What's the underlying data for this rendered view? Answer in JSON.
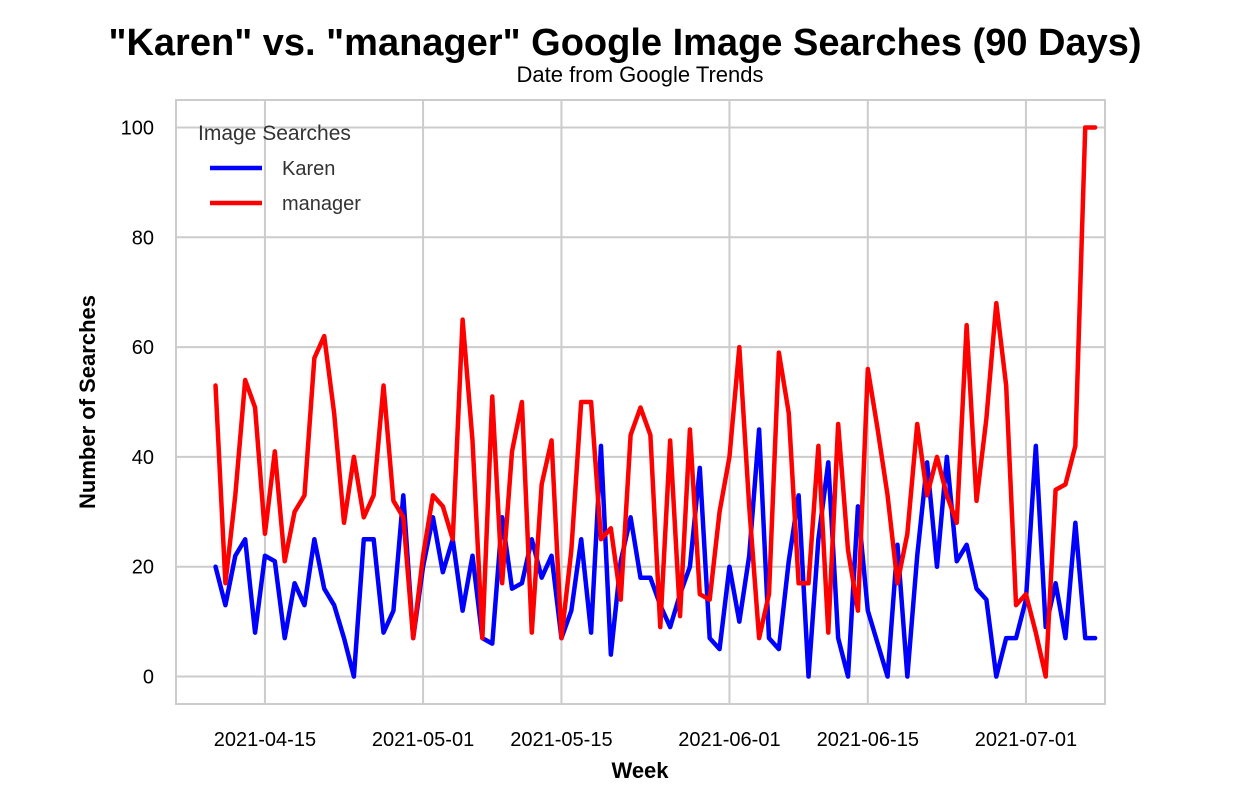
{
  "chart_data": {
    "type": "line",
    "title": "\"Karen\" vs. \"manager\" Google Image Searches (90 Days)",
    "subtitle": "Date from Google Trends",
    "xlabel": "Week",
    "ylabel": "Number of Searches",
    "ylim": [
      -5,
      105
    ],
    "yticks": [
      0,
      20,
      40,
      60,
      80,
      100
    ],
    "xlim": [
      "2021-04-06",
      "2021-07-09"
    ],
    "xticks": [
      "2021-04-15",
      "2021-05-01",
      "2021-05-15",
      "2021-06-01",
      "2021-06-15",
      "2021-07-01"
    ],
    "grid": true,
    "legend": {
      "title": "Image Searches",
      "placement": "top-left"
    },
    "x": [
      "2021-04-10",
      "2021-04-11",
      "2021-04-12",
      "2021-04-13",
      "2021-04-14",
      "2021-04-15",
      "2021-04-16",
      "2021-04-17",
      "2021-04-18",
      "2021-04-19",
      "2021-04-20",
      "2021-04-21",
      "2021-04-22",
      "2021-04-23",
      "2021-04-24",
      "2021-04-25",
      "2021-04-26",
      "2021-04-27",
      "2021-04-28",
      "2021-04-29",
      "2021-04-30",
      "2021-05-01",
      "2021-05-02",
      "2021-05-03",
      "2021-05-04",
      "2021-05-05",
      "2021-05-06",
      "2021-05-07",
      "2021-05-08",
      "2021-05-09",
      "2021-05-10",
      "2021-05-11",
      "2021-05-12",
      "2021-05-13",
      "2021-05-14",
      "2021-05-15",
      "2021-05-16",
      "2021-05-17",
      "2021-05-18",
      "2021-05-19",
      "2021-05-20",
      "2021-05-21",
      "2021-05-22",
      "2021-05-23",
      "2021-05-24",
      "2021-05-25",
      "2021-05-26",
      "2021-05-27",
      "2021-05-28",
      "2021-05-29",
      "2021-05-30",
      "2021-05-31",
      "2021-06-01",
      "2021-06-02",
      "2021-06-03",
      "2021-06-04",
      "2021-06-05",
      "2021-06-06",
      "2021-06-07",
      "2021-06-08",
      "2021-06-09",
      "2021-06-10",
      "2021-06-11",
      "2021-06-12",
      "2021-06-13",
      "2021-06-14",
      "2021-06-15",
      "2021-06-16",
      "2021-06-17",
      "2021-06-18",
      "2021-06-19",
      "2021-06-20",
      "2021-06-21",
      "2021-06-22",
      "2021-06-23",
      "2021-06-24",
      "2021-06-25",
      "2021-06-26",
      "2021-06-27",
      "2021-06-28",
      "2021-06-29",
      "2021-06-30",
      "2021-07-01",
      "2021-07-02",
      "2021-07-03",
      "2021-07-04",
      "2021-07-05",
      "2021-07-06",
      "2021-07-07",
      "2021-07-08"
    ],
    "series": [
      {
        "name": "Karen",
        "color": "#0000ff",
        "values": [
          20,
          13,
          22,
          25,
          8,
          22,
          21,
          7,
          17,
          13,
          25,
          16,
          13,
          7,
          0,
          25,
          25,
          8,
          12,
          33,
          7,
          20,
          29,
          19,
          25,
          12,
          22,
          7,
          6,
          29,
          16,
          17,
          25,
          18,
          22,
          7,
          12,
          25,
          8,
          42,
          4,
          21,
          29,
          18,
          18,
          13,
          9,
          15,
          20,
          38,
          7,
          5,
          20,
          10,
          22,
          45,
          7,
          5,
          21,
          33,
          0,
          25,
          39,
          7,
          0,
          31,
          12,
          6,
          0,
          24,
          0,
          22,
          39,
          20,
          40,
          21,
          24,
          16,
          14,
          0,
          7,
          7,
          14,
          42,
          9,
          17,
          7,
          28,
          7,
          7
        ]
      },
      {
        "name": "manager",
        "color": "#ff0000",
        "values": [
          53,
          17,
          33,
          54,
          49,
          26,
          41,
          21,
          30,
          33,
          58,
          62,
          48,
          28,
          40,
          29,
          33,
          53,
          32,
          29,
          7,
          22,
          33,
          31,
          25,
          65,
          43,
          7,
          51,
          17,
          41,
          50,
          8,
          35,
          43,
          7,
          23,
          50,
          50,
          25,
          27,
          14,
          44,
          49,
          44,
          9,
          43,
          11,
          45,
          15,
          14,
          30,
          40,
          60,
          31,
          7,
          15,
          59,
          48,
          17,
          17,
          42,
          8,
          46,
          23,
          12,
          56,
          45,
          33,
          17,
          26,
          46,
          33,
          40,
          33,
          28,
          64,
          32,
          47,
          68,
          53,
          13,
          15,
          8,
          0,
          34,
          35,
          42,
          100,
          100
        ]
      }
    ]
  }
}
